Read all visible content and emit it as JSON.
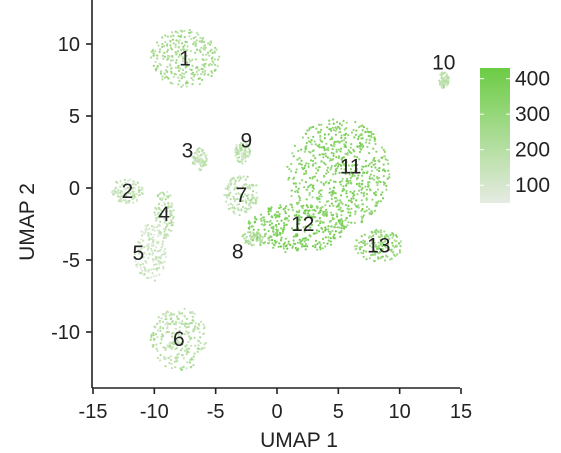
{
  "chart_data": {
    "type": "scatter",
    "xlabel": "UMAP 1",
    "ylabel": "UMAP 2",
    "xlim": [
      -15,
      15
    ],
    "ylim": [
      -13.5,
      12
    ],
    "x_ticks": [
      -15,
      -10,
      -5,
      0,
      5,
      10,
      15
    ],
    "y_ticks": [
      10,
      5,
      0,
      -5,
      -10
    ],
    "grid": false,
    "color_scale": {
      "low_color": "#e6ebe2",
      "high_color": "#6ccc44",
      "min": 50,
      "max": 430,
      "ticks": [
        400,
        300,
        200,
        100
      ]
    },
    "clusters": [
      {
        "label": "1",
        "x": -7.5,
        "y": 9.0,
        "rx": 2.8,
        "ry": 2.0,
        "level": 250
      },
      {
        "label": "2",
        "x": -12.2,
        "y": -0.2,
        "rx": 1.3,
        "ry": 0.9,
        "level": 150
      },
      {
        "label": "3",
        "x": -6.3,
        "y": 2.0,
        "rx": 0.6,
        "ry": 0.8,
        "level": 140
      },
      {
        "label": "4",
        "x": -9.2,
        "y": -1.8,
        "rx": 0.8,
        "ry": 1.7,
        "level": 160
      },
      {
        "label": "5",
        "x": -10.3,
        "y": -4.5,
        "rx": 1.3,
        "ry": 2.0,
        "level": 120
      },
      {
        "label": "6",
        "x": -8.0,
        "y": -10.5,
        "rx": 2.3,
        "ry": 2.2,
        "level": 190
      },
      {
        "label": "7",
        "x": -2.9,
        "y": -0.5,
        "rx": 1.4,
        "ry": 1.4,
        "level": 170
      },
      {
        "label": "8",
        "x": -2.0,
        "y": -3.5,
        "rx": 0.9,
        "ry": 0.5,
        "level": 200
      },
      {
        "label": "9",
        "x": -2.8,
        "y": 2.5,
        "rx": 0.6,
        "ry": 0.9,
        "level": 160
      },
      {
        "label": "10",
        "x": 13.6,
        "y": 7.5,
        "rx": 0.4,
        "ry": 0.6,
        "level": 180
      },
      {
        "label": "11",
        "x": 5.0,
        "y": 1.0,
        "rx": 4.2,
        "ry": 3.8,
        "level": 340
      },
      {
        "label": "12",
        "x": 1.5,
        "y": -2.8,
        "rx": 4.0,
        "ry": 1.7,
        "level": 360
      },
      {
        "label": "13",
        "x": 8.3,
        "y": -4.0,
        "rx": 2.0,
        "ry": 1.1,
        "level": 300
      }
    ]
  }
}
